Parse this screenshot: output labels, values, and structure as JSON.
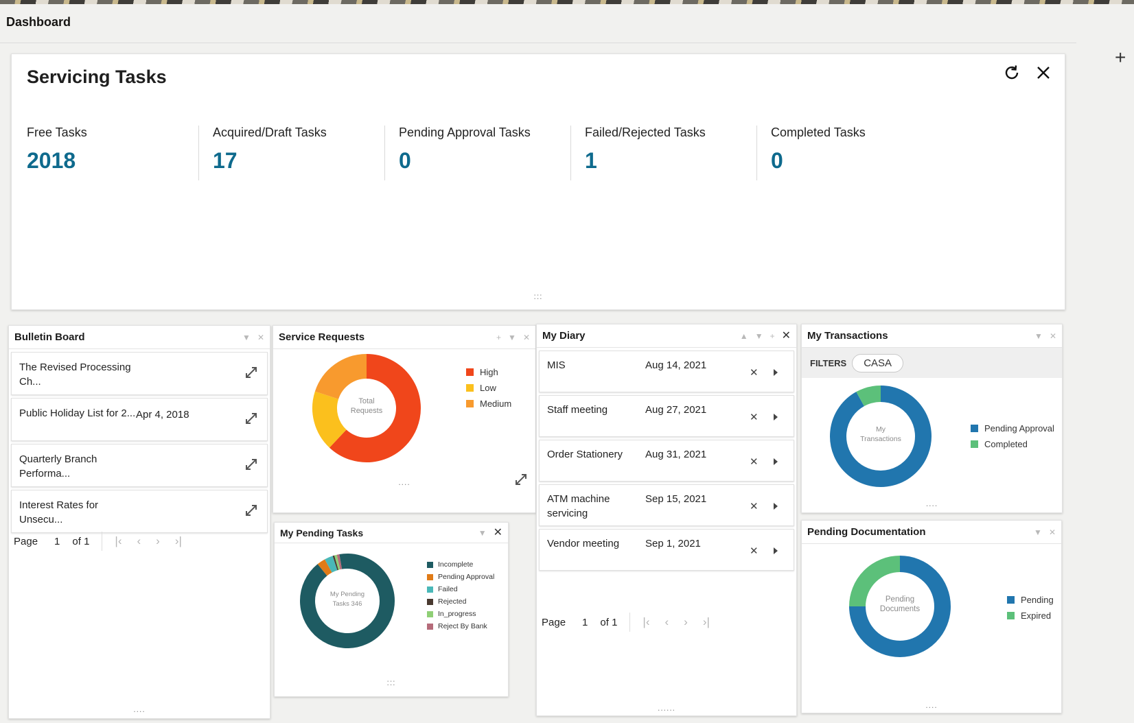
{
  "page": {
    "title": "Dashboard"
  },
  "servicing": {
    "title": "Servicing Tasks",
    "stats": [
      {
        "label": "Free Tasks",
        "value": "2018"
      },
      {
        "label": "Acquired/Draft Tasks",
        "value": "17"
      },
      {
        "label": "Pending Approval Tasks",
        "value": "0"
      },
      {
        "label": "Failed/Rejected Tasks",
        "value": "1"
      },
      {
        "label": "Completed Tasks",
        "value": "0"
      }
    ]
  },
  "bulletin": {
    "title": "Bulletin Board",
    "items": [
      {
        "text": "The Revised Processing Ch...",
        "date": ""
      },
      {
        "text": "Public Holiday List for 2...",
        "date": "Apr 4, 2018"
      },
      {
        "text": "Quarterly Branch Performa...",
        "date": ""
      },
      {
        "text": "Interest Rates for Unsecu...",
        "date": ""
      }
    ],
    "pager": {
      "label": "Page",
      "current": "1",
      "total": "of 1"
    }
  },
  "service_requests": {
    "title": "Service Requests",
    "center_label": "Total Requests",
    "legend": [
      {
        "label": "High",
        "color": "#f0461b"
      },
      {
        "label": "Low",
        "color": "#fbc01d"
      },
      {
        "label": "Medium",
        "color": "#f89a2e"
      }
    ]
  },
  "my_pending_tasks": {
    "title": "My Pending Tasks",
    "center_label": "My Pending Tasks 346",
    "legend": [
      {
        "label": "Incomplete",
        "color": "#1e5b62"
      },
      {
        "label": "Pending Approval",
        "color": "#e07b17"
      },
      {
        "label": "Failed",
        "color": "#4ab8b8"
      },
      {
        "label": "Rejected",
        "color": "#4a3a30"
      },
      {
        "label": "In_progress",
        "color": "#8fcf76"
      },
      {
        "label": "Reject By Bank",
        "color": "#b56b7a"
      }
    ]
  },
  "diary": {
    "title": "My Diary",
    "items": [
      {
        "text": "MIS",
        "date": "Aug 14, 2021"
      },
      {
        "text": "Staff meeting",
        "date": "Aug 27, 2021"
      },
      {
        "text": "Order Stationery",
        "date": "Aug 31, 2021"
      },
      {
        "text": "ATM machine servicing",
        "date": "Sep 15, 2021"
      },
      {
        "text": "Vendor meeting",
        "date": "Sep 1, 2021"
      }
    ],
    "pager": {
      "label": "Page",
      "current": "1",
      "total": "of 1"
    }
  },
  "transactions": {
    "title": "My Transactions",
    "filters_label": "FILTERS",
    "filter_chip": "CASA",
    "center_label": "My Transactions",
    "legend": [
      {
        "label": "Pending Approval",
        "color": "#2176ae"
      },
      {
        "label": "Completed",
        "color": "#5cc07a"
      }
    ]
  },
  "pending_documentation": {
    "title": "Pending Documentation",
    "center_label": "Pending Documents",
    "legend": [
      {
        "label": "Pending",
        "color": "#2176ae"
      },
      {
        "label": "Expired",
        "color": "#5cc07a"
      }
    ]
  },
  "chart_data": [
    {
      "type": "pie",
      "title": "Service Requests",
      "categories": [
        "High",
        "Low",
        "Medium"
      ],
      "values": [
        62,
        18,
        20
      ]
    },
    {
      "type": "pie",
      "title": "My Pending Tasks",
      "categories": [
        "Incomplete",
        "Pending Approval",
        "Failed",
        "Rejected",
        "In_progress",
        "Reject By Bank"
      ],
      "values": [
        318,
        10,
        10,
        2,
        3,
        3
      ]
    },
    {
      "type": "pie",
      "title": "My Transactions",
      "categories": [
        "Pending Approval",
        "Completed"
      ],
      "values": [
        92,
        8
      ]
    },
    {
      "type": "pie",
      "title": "Pending Documentation",
      "categories": [
        "Pending",
        "Expired"
      ],
      "values": [
        75,
        25
      ]
    }
  ]
}
